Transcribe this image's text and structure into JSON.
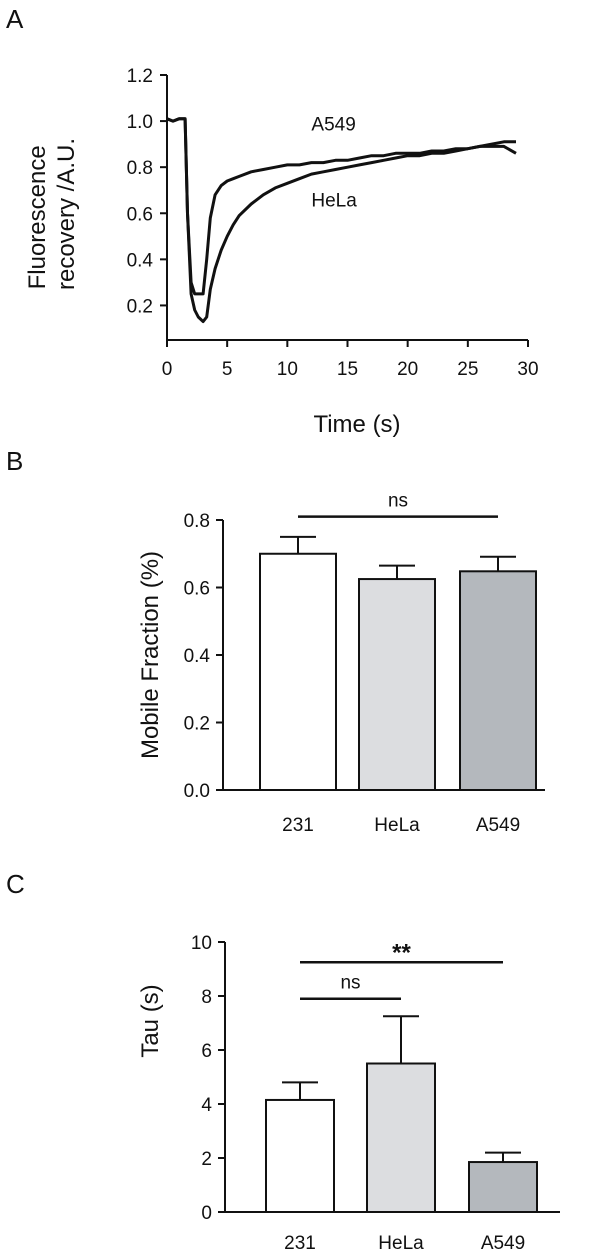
{
  "chart_data": [
    {
      "panel": "A",
      "type": "line",
      "xlabel": "Time (s)",
      "ylabel": "Fluorescence recovery /A.U.",
      "xlim": [
        0,
        30
      ],
      "ylim": [
        0.05,
        1.2
      ],
      "xticks": [
        0,
        5,
        10,
        15,
        20,
        25,
        30
      ],
      "yticks": [
        0.2,
        0.4,
        0.6,
        0.8,
        1.0,
        1.2
      ],
      "ytick_labels": [
        "0.2",
        "0.4",
        "0.6",
        "0.8",
        "1.0",
        "1.2"
      ],
      "grid": false,
      "series": [
        {
          "name": "A549",
          "x": [
            0,
            0.5,
            1.0,
            1.5,
            1.7,
            2.0,
            2.3,
            2.6,
            3.0,
            3.3,
            3.6,
            4.0,
            4.5,
            5.0,
            5.5,
            6.0,
            7.0,
            8.0,
            9.0,
            10.0,
            11.0,
            12.0,
            13.0,
            14.0,
            15.0,
            16.0,
            17.0,
            18.0,
            19.0,
            20.0,
            21.0,
            22.0,
            23.0,
            24.0,
            25.0,
            26.0,
            27.0,
            28.0,
            29.0
          ],
          "values": [
            1.01,
            1.0,
            1.01,
            1.01,
            0.6,
            0.3,
            0.25,
            0.25,
            0.25,
            0.4,
            0.58,
            0.68,
            0.72,
            0.74,
            0.75,
            0.76,
            0.78,
            0.79,
            0.8,
            0.81,
            0.81,
            0.82,
            0.82,
            0.83,
            0.83,
            0.84,
            0.85,
            0.85,
            0.86,
            0.86,
            0.86,
            0.87,
            0.87,
            0.88,
            0.88,
            0.89,
            0.89,
            0.89,
            0.86
          ]
        },
        {
          "name": "HeLa",
          "x": [
            0,
            0.5,
            1.0,
            1.5,
            1.7,
            2.0,
            2.3,
            2.6,
            3.0,
            3.3,
            3.6,
            4.0,
            4.5,
            5.0,
            5.5,
            6.0,
            7.0,
            8.0,
            9.0,
            10.0,
            11.0,
            12.0,
            13.0,
            14.0,
            15.0,
            16.0,
            17.0,
            18.0,
            19.0,
            20.0,
            21.0,
            22.0,
            23.0,
            24.0,
            25.0,
            26.0,
            27.0,
            28.0,
            29.0
          ],
          "values": [
            1.01,
            1.0,
            1.01,
            1.01,
            0.6,
            0.25,
            0.18,
            0.15,
            0.13,
            0.15,
            0.27,
            0.36,
            0.44,
            0.5,
            0.55,
            0.59,
            0.64,
            0.68,
            0.71,
            0.73,
            0.75,
            0.77,
            0.78,
            0.79,
            0.8,
            0.81,
            0.82,
            0.83,
            0.84,
            0.85,
            0.85,
            0.86,
            0.86,
            0.87,
            0.88,
            0.89,
            0.9,
            0.91,
            0.91
          ]
        }
      ],
      "curve_labels": [
        {
          "text": "A549",
          "x": 12.0,
          "y": 0.96
        },
        {
          "text": "HeLa",
          "x": 12.0,
          "y": 0.63
        }
      ]
    },
    {
      "panel": "B",
      "type": "bar",
      "ylabel": "Mobile Fraction (%)",
      "ylim": [
        0,
        0.8
      ],
      "yticks": [
        0,
        0.2,
        0.4,
        0.6,
        0.8
      ],
      "ytick_labels": [
        "0.0",
        "0.2",
        "0.4",
        "0.6",
        "0.8"
      ],
      "categories": [
        "231",
        "HeLa",
        "A549"
      ],
      "values": [
        0.7,
        0.625,
        0.648
      ],
      "errors": [
        0.05,
        0.04,
        0.043
      ],
      "bar_colors": [
        "#ffffff",
        "#dcdde0",
        "#b4b8bd"
      ],
      "significance": [
        {
          "from": 0,
          "to": 2,
          "label": "ns",
          "y": 0.81
        }
      ]
    },
    {
      "panel": "C",
      "type": "bar",
      "ylabel": "Tau (s)",
      "ylim": [
        0,
        10
      ],
      "yticks": [
        0,
        2,
        4,
        6,
        8,
        10
      ],
      "ytick_labels": [
        "0",
        "2",
        "4",
        "6",
        "8",
        "10"
      ],
      "categories": [
        "231",
        "HeLa",
        "A549"
      ],
      "values": [
        4.15,
        5.5,
        1.85
      ],
      "errors": [
        0.65,
        1.75,
        0.35
      ],
      "bar_colors": [
        "#ffffff",
        "#dcdde0",
        "#b4b8bd"
      ],
      "significance": [
        {
          "from": 0,
          "to": 2,
          "label": "**",
          "y": 9.25
        },
        {
          "from": 0,
          "to": 1,
          "label": "ns",
          "y": 7.9
        }
      ]
    }
  ]
}
